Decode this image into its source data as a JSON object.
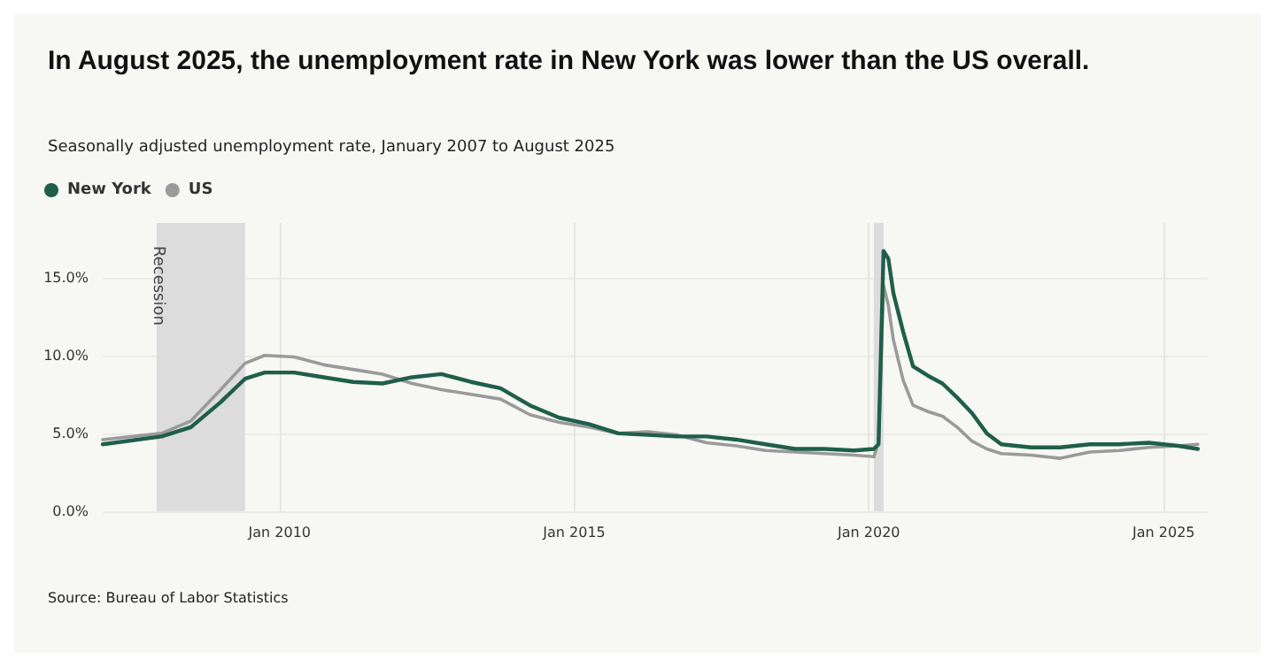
{
  "chart_data": {
    "type": "line",
    "title": "In August 2025, the unemployment rate in New York was lower than the US overall.",
    "subtitle": "Seasonally adjusted unemployment rate, January 2007 to August 2025",
    "annotations": [
      "Source: Bureau of Labor Statistics"
    ],
    "xlim": [
      "2007-01",
      "2025-10"
    ],
    "ylim": [
      0,
      18.5
    ],
    "xticks": [
      {
        "value": "2010-01",
        "label": "Jan 2010"
      },
      {
        "value": "2015-01",
        "label": "Jan 2015"
      },
      {
        "value": "2020-01",
        "label": "Jan 2020"
      },
      {
        "value": "2025-01",
        "label": "Jan 2025"
      }
    ],
    "yticks": [
      {
        "value": 0,
        "label": "0.0%"
      },
      {
        "value": 5,
        "label": "5.0%"
      },
      {
        "value": 10,
        "label": "10.0%"
      },
      {
        "value": 15,
        "label": "15.0%"
      }
    ],
    "grid": true,
    "legend": "top left",
    "marker": "none",
    "line_style": "solid",
    "bands": [
      {
        "axis": "x",
        "from": "2007-12",
        "to": "2009-06",
        "label": "Recession",
        "color": "#dcdcdc"
      },
      {
        "axis": "x",
        "from": "2020-02",
        "to": "2020-04",
        "label": null,
        "color": "#dcdcdc"
      }
    ],
    "x": [
      "2007-01",
      "2008-01",
      "2008-07",
      "2009-01",
      "2009-06",
      "2009-10",
      "2010-04",
      "2010-10",
      "2011-04",
      "2011-10",
      "2012-04",
      "2012-10",
      "2013-04",
      "2013-10",
      "2014-04",
      "2014-10",
      "2015-04",
      "2015-10",
      "2016-04",
      "2016-10",
      "2017-04",
      "2017-10",
      "2018-04",
      "2018-10",
      "2019-04",
      "2019-10",
      "2020-02",
      "2020-03",
      "2020-04",
      "2020-05",
      "2020-06",
      "2020-08",
      "2020-10",
      "2021-01",
      "2021-04",
      "2021-07",
      "2021-10",
      "2022-01",
      "2022-04",
      "2022-10",
      "2023-04",
      "2023-10",
      "2024-04",
      "2024-10",
      "2025-04",
      "2025-08"
    ],
    "series": [
      {
        "name": "New York",
        "color": "#1f5f4a",
        "values": [
          4.3,
          4.8,
          5.4,
          7.0,
          8.5,
          8.9,
          8.9,
          8.6,
          8.3,
          8.2,
          8.6,
          8.8,
          8.3,
          7.9,
          6.8,
          6.0,
          5.6,
          5.0,
          4.9,
          4.8,
          4.8,
          4.6,
          4.3,
          4.0,
          4.0,
          3.9,
          4.0,
          4.3,
          16.7,
          16.2,
          14.0,
          11.5,
          9.3,
          8.7,
          8.2,
          7.3,
          6.3,
          5.0,
          4.3,
          4.1,
          4.1,
          4.3,
          4.3,
          4.4,
          4.2,
          4.0
        ]
      },
      {
        "name": "US",
        "color": "#9a9a9a",
        "values": [
          4.6,
          5.0,
          5.8,
          7.8,
          9.5,
          10.0,
          9.9,
          9.4,
          9.1,
          8.8,
          8.2,
          7.8,
          7.5,
          7.2,
          6.2,
          5.7,
          5.4,
          5.0,
          5.1,
          4.9,
          4.4,
          4.2,
          3.9,
          3.8,
          3.7,
          3.6,
          3.5,
          4.4,
          14.5,
          13.2,
          11.0,
          8.4,
          6.8,
          6.4,
          6.1,
          5.4,
          4.5,
          4.0,
          3.7,
          3.6,
          3.4,
          3.8,
          3.9,
          4.1,
          4.2,
          4.3
        ]
      }
    ]
  }
}
